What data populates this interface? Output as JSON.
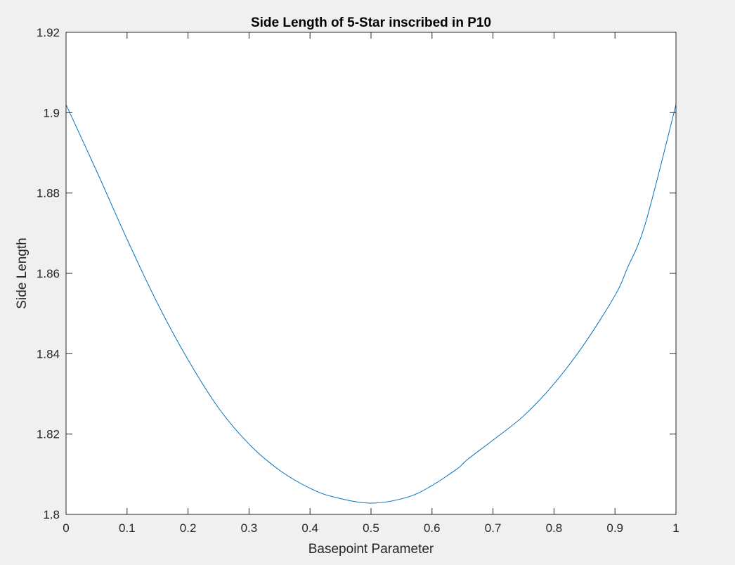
{
  "chart_data": {
    "type": "line",
    "title": "Side Length of 5-Star inscribed in P10",
    "xlabel": "Basepoint Parameter",
    "ylabel": "Side Length",
    "xlim": [
      0,
      1
    ],
    "ylim": [
      1.8,
      1.92
    ],
    "xticks": [
      0,
      0.1,
      0.2,
      0.3,
      0.4,
      0.5,
      0.6,
      0.7,
      0.8,
      0.9,
      1
    ],
    "xtick_labels": [
      "0",
      "0.1",
      "0.2",
      "0.3",
      "0.4",
      "0.5",
      "0.6",
      "0.7",
      "0.8",
      "0.9",
      "1"
    ],
    "yticks": [
      1.8,
      1.82,
      1.84,
      1.86,
      1.88,
      1.9,
      1.92
    ],
    "ytick_labels": [
      "1.8",
      "1.82",
      "1.84",
      "1.86",
      "1.88",
      "1.9",
      "1.92"
    ],
    "grid": false,
    "box": true,
    "series": [
      {
        "color": "#0072bd",
        "x": [
          0,
          0.05,
          0.1,
          0.15,
          0.2,
          0.25,
          0.3,
          0.35,
          0.4,
          0.44,
          0.5,
          0.56,
          0.6,
          0.64,
          0.65,
          0.66,
          0.7,
          0.75,
          0.8,
          0.85,
          0.9,
          0.92,
          0.95,
          1
        ],
        "y": [
          1.902,
          1.8855,
          1.8685,
          1.8525,
          1.8385,
          1.8265,
          1.8175,
          1.811,
          1.8065,
          1.8043,
          1.8028,
          1.8043,
          1.8072,
          1.8112,
          1.8125,
          1.8139,
          1.8185,
          1.8245,
          1.8325,
          1.8425,
          1.8545,
          1.8612,
          1.8725,
          1.902
        ]
      }
    ]
  }
}
